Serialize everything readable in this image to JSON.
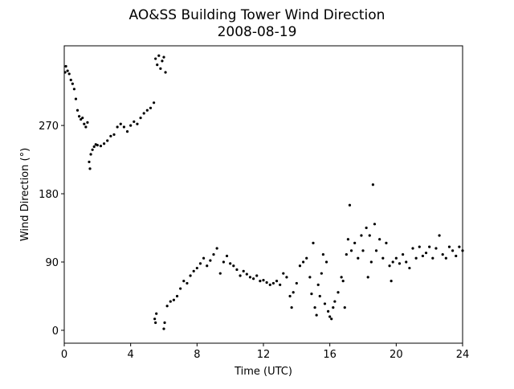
{
  "chart_data": {
    "type": "scatter",
    "title": "AO&SS Building Tower Wind Direction",
    "subtitle": "2008-08-19",
    "xlabel": "Time (UTC)",
    "ylabel": "Wind Direction (°)",
    "color": "#000000",
    "xlim": [
      0,
      24
    ],
    "ylim": [
      -17,
      375
    ],
    "xticks": [
      0,
      4,
      8,
      12,
      16,
      20,
      24
    ],
    "yticks": [
      0,
      90,
      180,
      270
    ],
    "x": [
      0.05,
      0.1,
      0.2,
      0.3,
      0.4,
      0.5,
      0.6,
      0.7,
      0.8,
      0.9,
      1.0,
      1.1,
      1.2,
      1.3,
      1.4,
      1.5,
      1.55,
      1.6,
      1.7,
      1.8,
      1.9,
      2.0,
      2.2,
      2.4,
      2.6,
      2.8,
      3.0,
      3.2,
      3.4,
      3.6,
      3.8,
      4.0,
      4.2,
      4.4,
      4.6,
      4.8,
      5.0,
      5.2,
      5.4,
      5.5,
      5.6,
      5.7,
      5.8,
      5.9,
      6.0,
      6.1,
      5.45,
      5.5,
      5.55,
      6.0,
      6.05,
      6.2,
      6.4,
      6.6,
      6.8,
      7.0,
      7.2,
      7.4,
      7.6,
      7.8,
      8.0,
      8.2,
      8.4,
      8.6,
      8.8,
      9.0,
      9.2,
      9.4,
      9.6,
      9.8,
      10.0,
      10.2,
      10.4,
      10.6,
      10.8,
      11.0,
      11.2,
      11.4,
      11.6,
      11.8,
      12.0,
      12.2,
      12.4,
      12.6,
      12.8,
      13.0,
      13.2,
      13.4,
      13.6,
      13.7,
      13.8,
      14.0,
      14.2,
      14.4,
      14.6,
      14.8,
      14.9,
      15.0,
      15.1,
      15.2,
      15.3,
      15.4,
      15.5,
      15.6,
      15.7,
      15.8,
      15.9,
      16.0,
      16.1,
      16.2,
      16.3,
      16.5,
      16.7,
      16.8,
      16.9,
      17.0,
      17.1,
      17.2,
      17.3,
      17.5,
      17.7,
      17.9,
      18.0,
      18.2,
      18.3,
      18.4,
      18.5,
      18.6,
      18.7,
      18.8,
      19.0,
      19.2,
      19.4,
      19.6,
      19.7,
      19.8,
      20.0,
      20.2,
      20.4,
      20.6,
      20.8,
      21.0,
      21.2,
      21.4,
      21.6,
      21.8,
      22.0,
      22.2,
      22.4,
      22.6,
      22.8,
      23.0,
      23.2,
      23.4,
      23.6,
      23.8,
      24.0
    ],
    "values": [
      340,
      348,
      342,
      338,
      330,
      325,
      318,
      305,
      290,
      282,
      278,
      280,
      272,
      268,
      274,
      222,
      213,
      232,
      238,
      242,
      245,
      244,
      243,
      246,
      250,
      256,
      258,
      268,
      272,
      268,
      262,
      270,
      275,
      272,
      280,
      286,
      290,
      293,
      300,
      358,
      350,
      362,
      345,
      355,
      360,
      340,
      15,
      10,
      22,
      2,
      10,
      32,
      38,
      40,
      45,
      55,
      65,
      62,
      72,
      78,
      82,
      88,
      95,
      85,
      92,
      100,
      108,
      75,
      90,
      98,
      88,
      85,
      80,
      72,
      78,
      74,
      70,
      68,
      72,
      65,
      66,
      63,
      60,
      62,
      65,
      60,
      75,
      70,
      45,
      30,
      50,
      62,
      85,
      90,
      95,
      70,
      48,
      115,
      30,
      20,
      60,
      45,
      75,
      100,
      35,
      90,
      25,
      18,
      15,
      30,
      38,
      50,
      70,
      65,
      30,
      100,
      120,
      165,
      105,
      115,
      95,
      125,
      105,
      135,
      70,
      125,
      90,
      192,
      140,
      105,
      120,
      95,
      115,
      85,
      65,
      90,
      95,
      88,
      100,
      90,
      82,
      108,
      95,
      110,
      98,
      102,
      110,
      95,
      108,
      125,
      100,
      95,
      110,
      105,
      98,
      110,
      105
    ]
  }
}
